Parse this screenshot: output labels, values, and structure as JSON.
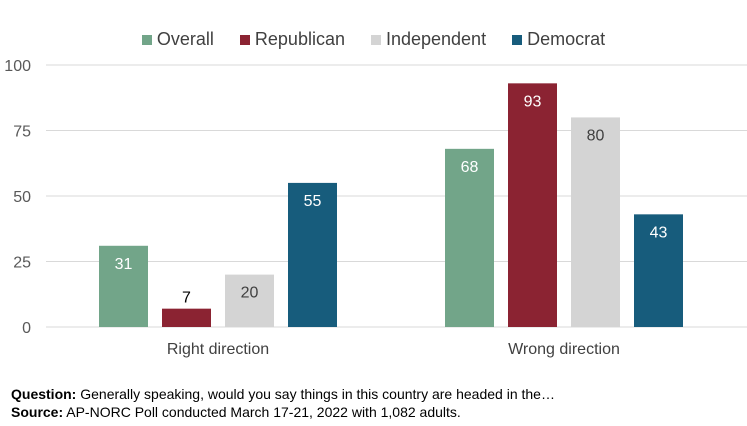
{
  "chart_data": {
    "type": "bar",
    "categories": [
      "Right direction",
      "Wrong direction"
    ],
    "series": [
      {
        "name": "Overall",
        "color": "#72a589",
        "label_color": "#ffffff",
        "values": [
          31,
          68
        ]
      },
      {
        "name": "Republican",
        "color": "#8b2332",
        "label_color": "#ffffff",
        "values": [
          7,
          93
        ]
      },
      {
        "name": "Independent",
        "color": "#d4d4d4",
        "label_color": "#404040",
        "values": [
          20,
          80
        ]
      },
      {
        "name": "Democrat",
        "color": "#175c7c",
        "label_color": "#ffffff",
        "values": [
          55,
          43
        ]
      }
    ],
    "ylim": [
      0,
      100
    ],
    "yticks": [
      0,
      25,
      50,
      75,
      100
    ],
    "grid": true,
    "legend_position": "top"
  },
  "footnotes": {
    "question_label": "Question:",
    "question_text": "Generally speaking, would you say things in this country are headed in the…",
    "source_label": "Source:",
    "source_text": "AP-NORC Poll conducted March 17-21, 2022 with 1,082 adults."
  }
}
